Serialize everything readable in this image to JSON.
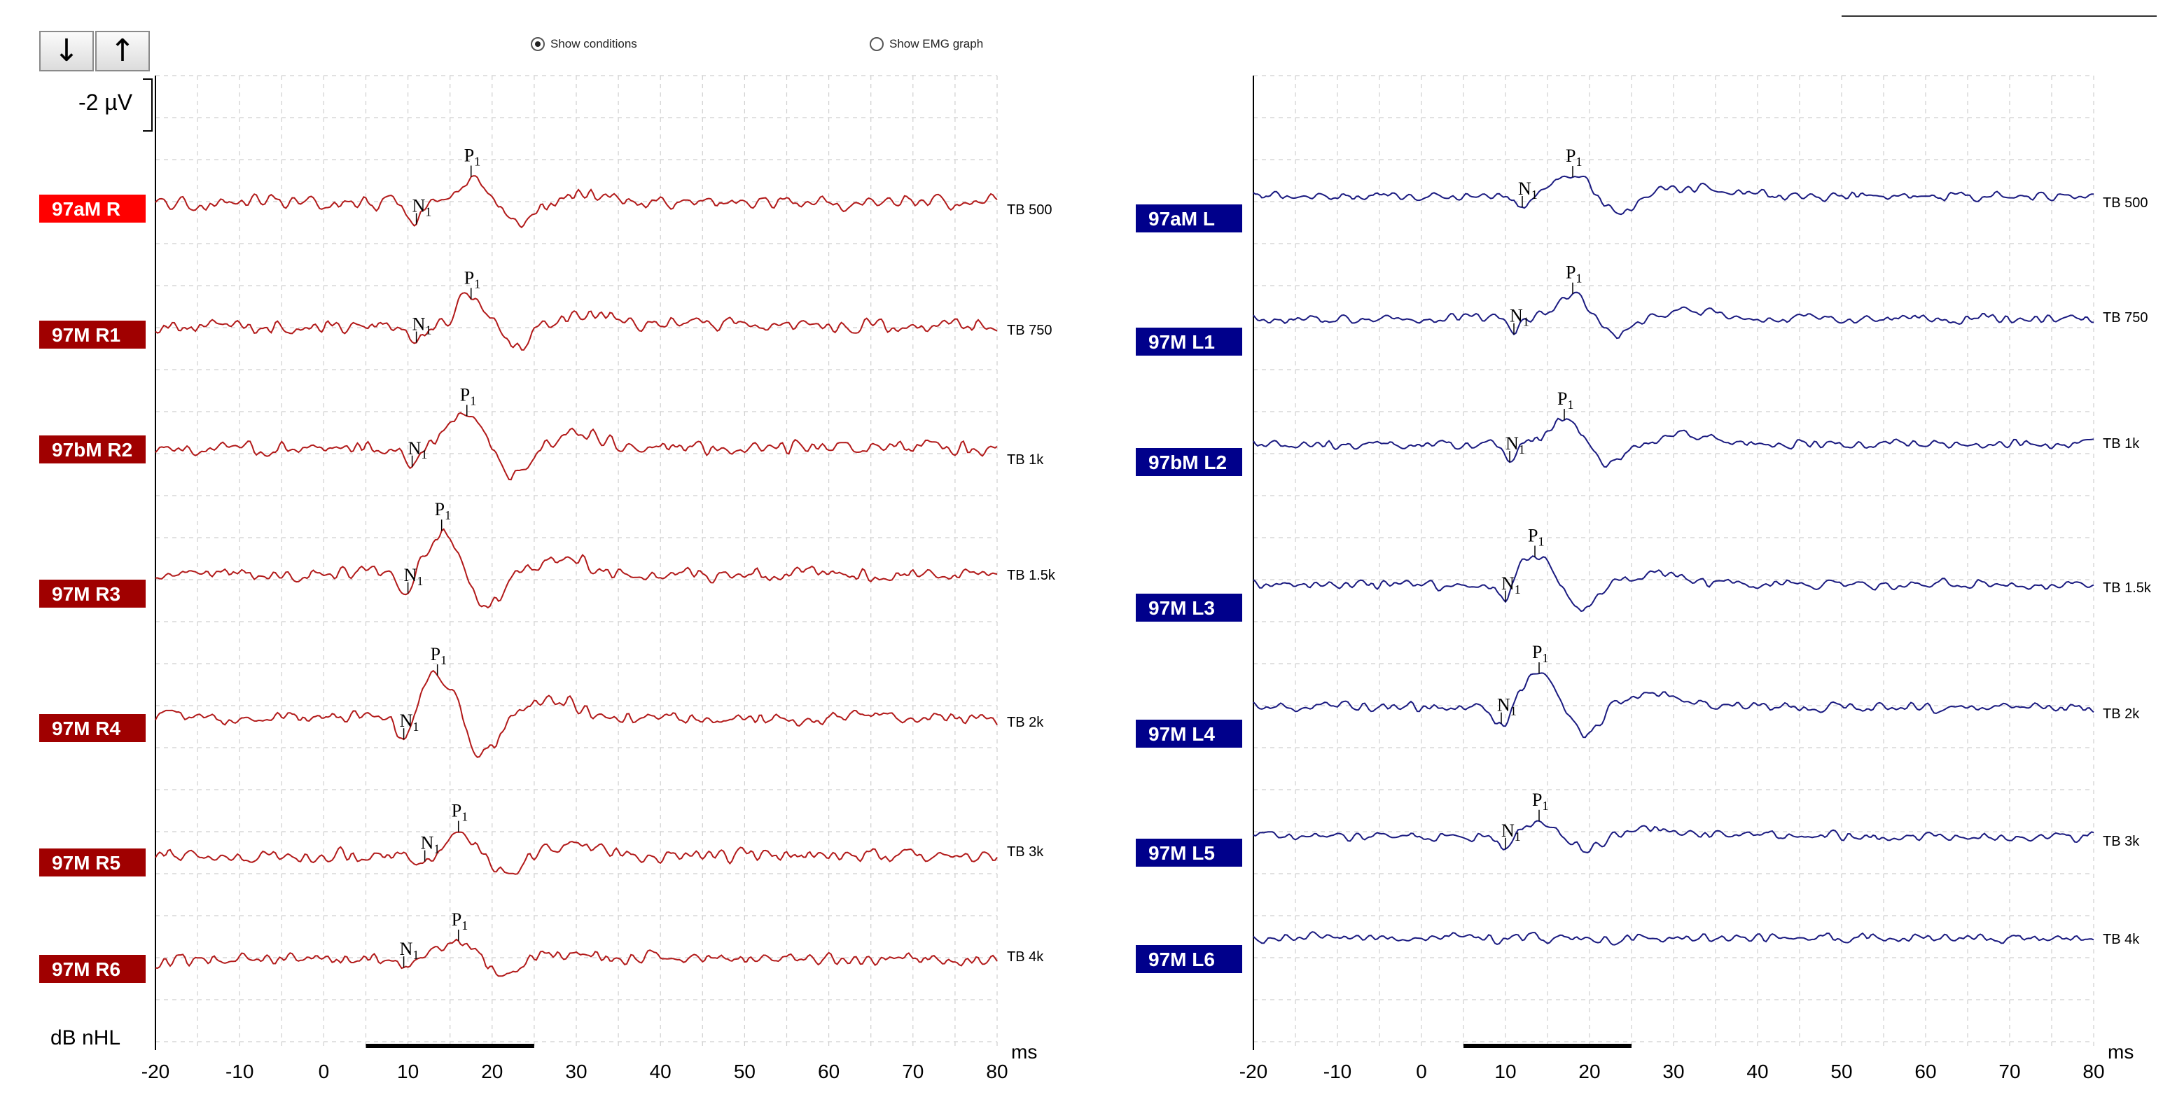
{
  "toolbar": {
    "down_icon": "arrow-down-icon",
    "up_icon": "arrow-up-icon",
    "down_label": "↓",
    "up_label": "↑",
    "show_conditions": "Show conditions",
    "show_conditions_checked": true,
    "show_emg": "Show EMG graph",
    "show_emg_checked": false
  },
  "calibration_label": "-2 µV",
  "unit_label": "dB nHL",
  "colors": {
    "right_accent": "#a00000",
    "right_first": "#ff0000",
    "left_accent": "#00008b",
    "right_trace": "#b21a1a",
    "left_trace": "#1a1a80"
  },
  "chart_data": [
    {
      "type": "line",
      "ear": "right",
      "xlim": [
        -20,
        80
      ],
      "x_ticks": [
        -20,
        -10,
        0,
        10,
        20,
        30,
        40,
        50,
        60,
        70,
        80
      ],
      "xlabel": "ms",
      "stim_bar_ms": [
        5,
        25
      ],
      "traces": [
        {
          "name": "97aM R",
          "condition": "TB 500",
          "n1": {
            "label": "N1",
            "ms": 11
          },
          "p1": {
            "label": "P1",
            "ms": 17.5
          }
        },
        {
          "name": "97M R1",
          "condition": "TB 750",
          "n1": {
            "label": "N1",
            "ms": 11
          },
          "p1": {
            "label": "P1",
            "ms": 17.5
          }
        },
        {
          "name": "97bM R2",
          "condition": "TB 1k",
          "n1": {
            "label": "N1",
            "ms": 10.5
          },
          "p1": {
            "label": "P1",
            "ms": 17
          }
        },
        {
          "name": "97M R3",
          "condition": "TB 1.5k",
          "n1": {
            "label": "N1",
            "ms": 10
          },
          "p1": {
            "label": "P1",
            "ms": 14
          }
        },
        {
          "name": "97M R4",
          "condition": "TB 2k",
          "n1": {
            "label": "N1",
            "ms": 9.5
          },
          "p1": {
            "label": "P1",
            "ms": 13.5
          }
        },
        {
          "name": "97M R5",
          "condition": "TB 3k",
          "n1": {
            "label": "N1",
            "ms": 12
          },
          "p1": {
            "label": "P1",
            "ms": 16
          }
        },
        {
          "name": "97M R6",
          "condition": "TB 4k",
          "n1": {
            "label": "N1",
            "ms": 9.5
          },
          "p1": {
            "label": "P1",
            "ms": 16
          }
        }
      ]
    },
    {
      "type": "line",
      "ear": "left",
      "xlim": [
        -20,
        80
      ],
      "x_ticks": [
        -20,
        -10,
        0,
        10,
        20,
        30,
        40,
        50,
        60,
        70,
        80
      ],
      "xlabel": "ms",
      "stim_bar_ms": [
        5,
        25
      ],
      "traces": [
        {
          "name": "97aM L",
          "condition": "TB 500",
          "n1": {
            "label": "N1",
            "ms": 12
          },
          "p1": {
            "label": "P1",
            "ms": 18
          }
        },
        {
          "name": "97M L1",
          "condition": "TB 750",
          "n1": {
            "label": "N1",
            "ms": 11
          },
          "p1": {
            "label": "P1",
            "ms": 18
          }
        },
        {
          "name": "97bM L2",
          "condition": "TB 1k",
          "n1": {
            "label": "N1",
            "ms": 10.5
          },
          "p1": {
            "label": "P1",
            "ms": 17
          }
        },
        {
          "name": "97M L3",
          "condition": "TB 1.5k",
          "n1": {
            "label": "N1",
            "ms": 10
          },
          "p1": {
            "label": "P1",
            "ms": 13.5
          }
        },
        {
          "name": "97M L4",
          "condition": "TB 2k",
          "n1": {
            "label": "N1",
            "ms": 9.5
          },
          "p1": {
            "label": "P1",
            "ms": 14
          }
        },
        {
          "name": "97M L5",
          "condition": "TB 3k",
          "n1": {
            "label": "N1",
            "ms": 10
          },
          "p1": {
            "label": "P1",
            "ms": 14
          }
        },
        {
          "name": "97M L6",
          "condition": "TB 4k",
          "n1": null,
          "p1": null
        }
      ]
    }
  ]
}
